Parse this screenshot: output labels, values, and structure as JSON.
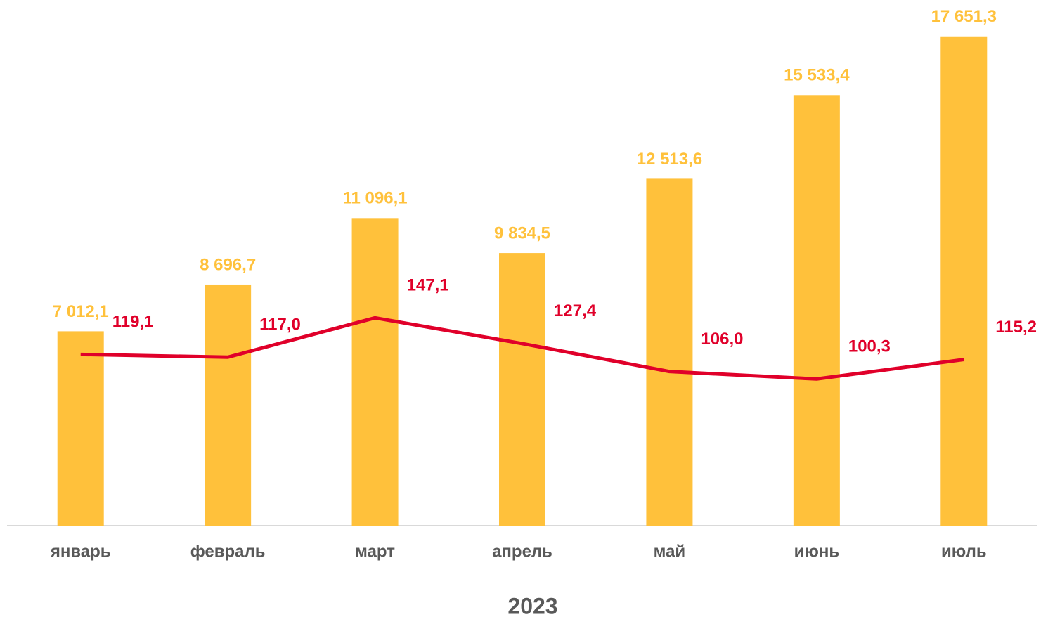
{
  "chart_data": {
    "type": "bar",
    "xlabel": "2023",
    "categories": [
      "январь",
      "февраль",
      "март",
      "апрель",
      "май",
      "июнь",
      "июль"
    ],
    "ylim": [
      0,
      18000
    ],
    "y2lim": [
      -12,
      370
    ],
    "series": [
      {
        "type": "bar",
        "color": "#ffc13b",
        "values": [
          7012.1,
          8696.7,
          11096.1,
          9834.5,
          12513.6,
          15533.4,
          17651.3
        ],
        "value_labels": [
          "7 012,1",
          "8 696,7",
          "11 096,1",
          "9 834,5",
          "12 513,6",
          "15 533,4",
          "17 651,3"
        ]
      },
      {
        "type": "line",
        "axis": "y2",
        "color": "#e0002a",
        "values": [
          119.1,
          117.0,
          147.1,
          127.4,
          106.0,
          100.3,
          115.2
        ],
        "value_labels": [
          "119,1",
          "117,0",
          "147,1",
          "127,4",
          "106,0",
          "100,3",
          "115,2"
        ]
      }
    ]
  }
}
